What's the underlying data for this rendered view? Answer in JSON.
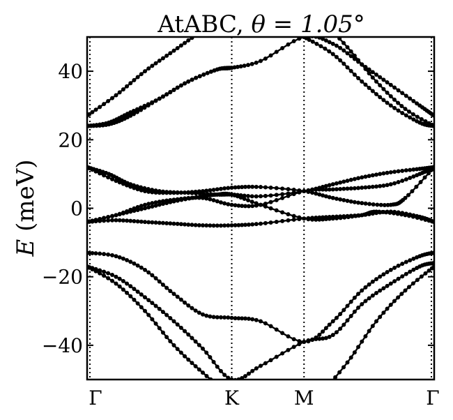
{
  "chart_data": {
    "type": "line",
    "title_text": "AtABC, ",
    "title_math": "θ = 1.05°",
    "ylabel_math": "E",
    "ylabel_text": " (meV)",
    "xlabel": "",
    "ylim": [
      -50,
      50
    ],
    "yticks": [
      -40,
      -20,
      0,
      20,
      40
    ],
    "ytick_labels": [
      "−40",
      "−20",
      "0",
      "20",
      "40"
    ],
    "xticks": [
      0,
      1,
      1.5,
      2.4
    ],
    "xtick_labels": [
      "Γ",
      "K",
      "M",
      "Γ"
    ],
    "xlim": [
      0,
      2.4
    ],
    "grid": false,
    "vertical_lines": [
      1,
      1.5
    ],
    "marker": "filled-circle",
    "line_color": "#000000",
    "series": [
      {
        "x": [
          0,
          0.2,
          0.4,
          0.6,
          0.8,
          1.0
        ],
        "y": [
          27,
          33,
          40,
          46,
          52,
          58
        ]
      },
      {
        "x": [
          0,
          0.15,
          0.3,
          0.5,
          0.7,
          0.9,
          1.0,
          1.2,
          1.5,
          1.7,
          1.9,
          2.1,
          2.3,
          2.4
        ],
        "y": [
          24,
          24.5,
          27,
          32,
          37,
          40.5,
          41,
          43,
          50,
          48,
          42,
          36,
          30,
          27
        ]
      },
      {
        "x": [
          0,
          0.15,
          0.3,
          0.5,
          0.7,
          0.9,
          1.0
        ],
        "y": [
          24,
          25,
          28,
          32,
          37,
          40.5,
          41
        ]
      },
      {
        "x": [
          1.5,
          1.7,
          1.9,
          2.1,
          2.3,
          2.4
        ],
        "y": [
          50,
          45,
          37,
          30,
          25,
          24
        ]
      },
      {
        "x": [
          1.6,
          1.8,
          2.0,
          2.2,
          2.4
        ],
        "y": [
          56,
          47,
          37,
          29,
          24
        ]
      },
      {
        "x": [
          0,
          0.15,
          0.3,
          0.5,
          0.7,
          0.9,
          1.0,
          1.2,
          1.5,
          1.7,
          1.9,
          2.1,
          2.3,
          2.4
        ],
        "y": [
          12,
          10,
          7,
          5,
          4.5,
          4,
          4,
          3.5,
          5,
          7,
          9,
          10.5,
          11.5,
          12
        ]
      },
      {
        "x": [
          0,
          0.2,
          0.4,
          0.6,
          0.8,
          1.0,
          1.2,
          1.5,
          1.7,
          1.9,
          2.1,
          2.2,
          2.4
        ],
        "y": [
          12,
          8,
          5,
          4.5,
          5,
          6,
          6.2,
          5,
          3,
          1.5,
          1,
          3,
          12
        ]
      },
      {
        "x": [
          0,
          0.2,
          0.4,
          0.6,
          0.8,
          1.0,
          1.2,
          1.5,
          1.7,
          1.9,
          2.1,
          2.3,
          2.4
        ],
        "y": [
          -4,
          -2,
          1,
          2.5,
          3,
          1,
          1,
          5,
          5.5,
          6,
          7,
          10,
          12
        ]
      },
      {
        "x": [
          0,
          0.2,
          0.4,
          0.6,
          0.8,
          0.9,
          1.0,
          1.2,
          1.5,
          1.7,
          1.9,
          2.0,
          2.2,
          2.4
        ],
        "y": [
          -4,
          -2,
          0,
          2,
          3.5,
          4,
          4,
          1,
          -3,
          -3,
          -2,
          -1,
          -2,
          -4
        ]
      },
      {
        "x": [
          0,
          0.2,
          0.4,
          0.6,
          0.8,
          1.0,
          1.2,
          1.5,
          1.7,
          1.9,
          2.1,
          2.3,
          2.4
        ],
        "y": [
          -4,
          -3.5,
          -4,
          -4.5,
          -5,
          -5,
          -4.5,
          -3,
          -2.5,
          -2,
          -1,
          -2.5,
          -4
        ]
      },
      {
        "x": [
          0,
          0.2,
          0.4,
          0.6,
          0.8,
          1.0,
          1.2,
          1.5,
          1.7,
          1.9,
          2.1,
          2.3,
          2.4
        ],
        "y": [
          -13,
          -14,
          -18,
          -25,
          -31,
          -32,
          -33,
          -39,
          -33,
          -24,
          -18,
          -14,
          -13
        ]
      },
      {
        "x": [
          0,
          0.2,
          0.4,
          0.6,
          0.8,
          1.0,
          1.2,
          1.5,
          1.7,
          1.9,
          2.1,
          2.3,
          2.4
        ],
        "y": [
          -17,
          -20,
          -26,
          -33,
          -41,
          -50,
          -46,
          -39,
          -37,
          -28,
          -22,
          -17,
          -16
        ]
      },
      {
        "x": [
          0,
          0.2,
          0.4,
          0.6,
          0.8,
          1.0
        ],
        "y": [
          -17,
          -22,
          -30,
          -40,
          -48,
          -55
        ]
      },
      {
        "x": [
          1.6,
          1.8,
          2.0,
          2.2,
          2.4
        ],
        "y": [
          -55,
          -45,
          -33,
          -24,
          -17
        ]
      }
    ]
  }
}
